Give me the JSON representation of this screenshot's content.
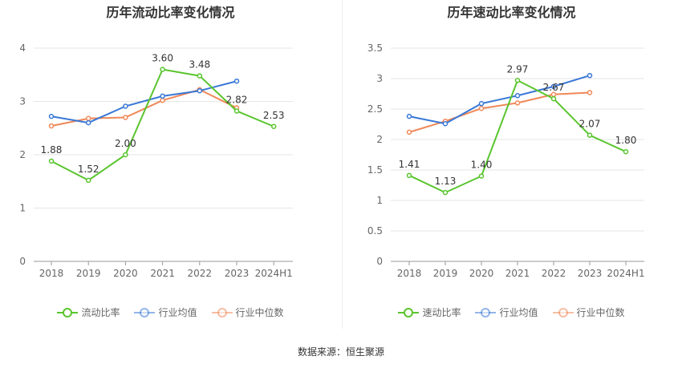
{
  "chart_data": [
    {
      "type": "line",
      "title": "历年流动比率变化情况",
      "categories": [
        "2018",
        "2019",
        "2020",
        "2021",
        "2022",
        "2023",
        "2024H1"
      ],
      "ylim": [
        0,
        4
      ],
      "yticks": [
        "0",
        "1",
        "2",
        "3",
        "4"
      ],
      "grid": true,
      "legend_position": "bottom",
      "series": [
        {
          "name": "流动比率",
          "color": "#5ac52e",
          "values": [
            1.88,
            1.52,
            2.0,
            3.6,
            3.48,
            2.82,
            2.53
          ],
          "labels": [
            "1.88",
            "1.52",
            "2.00",
            "3.60",
            "3.48",
            "2.82",
            "2.53"
          ]
        },
        {
          "name": "行业均值",
          "color": "#3a78d6",
          "values": [
            2.72,
            2.6,
            2.91,
            3.1,
            3.2,
            3.38,
            null
          ]
        },
        {
          "name": "行业中位数",
          "color": "#f08858",
          "values": [
            2.54,
            2.68,
            2.7,
            3.02,
            3.22,
            2.88,
            null
          ]
        }
      ]
    },
    {
      "type": "line",
      "title": "历年速动比率变化情况",
      "categories": [
        "2018",
        "2019",
        "2020",
        "2021",
        "2022",
        "2023",
        "2024H1"
      ],
      "ylim": [
        0,
        3.5
      ],
      "yticks": [
        "0",
        "0.5",
        "1",
        "1.5",
        "2",
        "2.5",
        "3",
        "3.5"
      ],
      "grid": true,
      "legend_position": "bottom",
      "series": [
        {
          "name": "速动比率",
          "color": "#5ac52e",
          "values": [
            1.41,
            1.13,
            1.4,
            2.97,
            2.67,
            2.07,
            1.8
          ],
          "labels": [
            "1.41",
            "1.13",
            "1.40",
            "2.97",
            "2.67",
            "2.07",
            "1.80"
          ]
        },
        {
          "name": "行业均值",
          "color": "#3a78d6",
          "values": [
            2.38,
            2.26,
            2.59,
            2.72,
            2.87,
            3.05,
            null
          ]
        },
        {
          "name": "行业中位数",
          "color": "#f08858",
          "values": [
            2.12,
            2.3,
            2.51,
            2.6,
            2.74,
            2.77,
            null
          ]
        }
      ]
    }
  ],
  "footer": {
    "source": "数据来源：恒生聚源"
  }
}
